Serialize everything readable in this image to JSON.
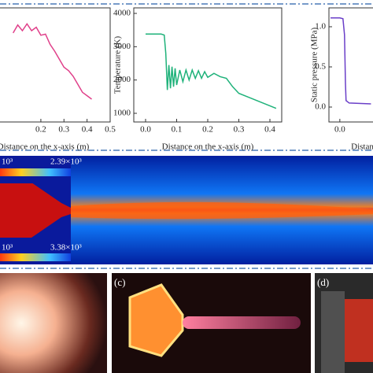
{
  "chart_data": [
    {
      "type": "line",
      "xlabel": "Distance on the x-axis (m)",
      "x": [
        0.08,
        0.1,
        0.12,
        0.14,
        0.16,
        0.18,
        0.2,
        0.22,
        0.24,
        0.26,
        0.28,
        0.3,
        0.32,
        0.34,
        0.36,
        0.38,
        0.4,
        0.42
      ],
      "series": [
        {
          "color": "#e0408a",
          "values": [
            78,
            85,
            80,
            86,
            80,
            83,
            76,
            77,
            68,
            62,
            55,
            48,
            45,
            40,
            33,
            26,
            23,
            20
          ]
        }
      ],
      "xlim": [
        -0.079,
        0.5
      ],
      "ylim": [
        0,
        100
      ],
      "xticks": [
        0.2,
        0.3,
        0.4,
        0.5
      ]
    },
    {
      "type": "line",
      "xlabel": "Distance on the x-axis (m)",
      "ylabel": "Temperature (K)",
      "x": [
        0.0,
        0.05,
        0.06,
        0.065,
        0.07,
        0.075,
        0.08,
        0.085,
        0.09,
        0.095,
        0.1,
        0.11,
        0.12,
        0.13,
        0.14,
        0.15,
        0.16,
        0.17,
        0.18,
        0.19,
        0.2,
        0.22,
        0.24,
        0.26,
        0.28,
        0.3,
        0.34,
        0.38,
        0.42
      ],
      "series": [
        {
          "color": "#1fb27a",
          "values": [
            3380,
            3380,
            3350,
            2800,
            1700,
            2450,
            1750,
            2400,
            1800,
            2350,
            1850,
            2300,
            1950,
            2300,
            2000,
            2300,
            2050,
            2280,
            2050,
            2250,
            2080,
            2200,
            2100,
            2050,
            1800,
            1600,
            1450,
            1300,
            1150
          ]
        }
      ],
      "xlim": [
        -0.038,
        0.438
      ],
      "ylim": [
        740,
        4166
      ],
      "xticks": [
        {
          "value": 0.0,
          "label": "0.0"
        },
        0.1,
        0.2,
        0.3,
        0.4
      ],
      "yticks": [
        1000,
        2000,
        3000,
        4000
      ]
    },
    {
      "type": "line",
      "xlabel": "Distance on the x-axis (m)",
      "ylabel": "Static pressure (MPa)",
      "x": [
        -0.03,
        0.0,
        0.01,
        0.015,
        0.018,
        0.02,
        0.03,
        0.1
      ],
      "series": [
        {
          "color": "#6a3fc8",
          "values": [
            1.11,
            1.11,
            1.1,
            0.9,
            0.3,
            0.08,
            0.05,
            0.04
          ]
        }
      ],
      "xlim": [
        -0.035,
        0.2
      ],
      "ylim": [
        -0.186,
        1.235
      ],
      "xticks": [
        {
          "value": 0.0,
          "label": "0.0"
        }
      ],
      "yticks": [
        {
          "value": 0.0,
          "label": "0.0"
        },
        0.5,
        {
          "value": 1.0,
          "label": "1.0"
        }
      ]
    }
  ],
  "contour": {
    "top_left_label": "10³",
    "top_max_label": "2.39×10³",
    "bottom_left_label": "10³",
    "bottom_max_label": "3.38×10³"
  },
  "photos": {
    "c_label": "(c)",
    "d_label": "(d)"
  }
}
